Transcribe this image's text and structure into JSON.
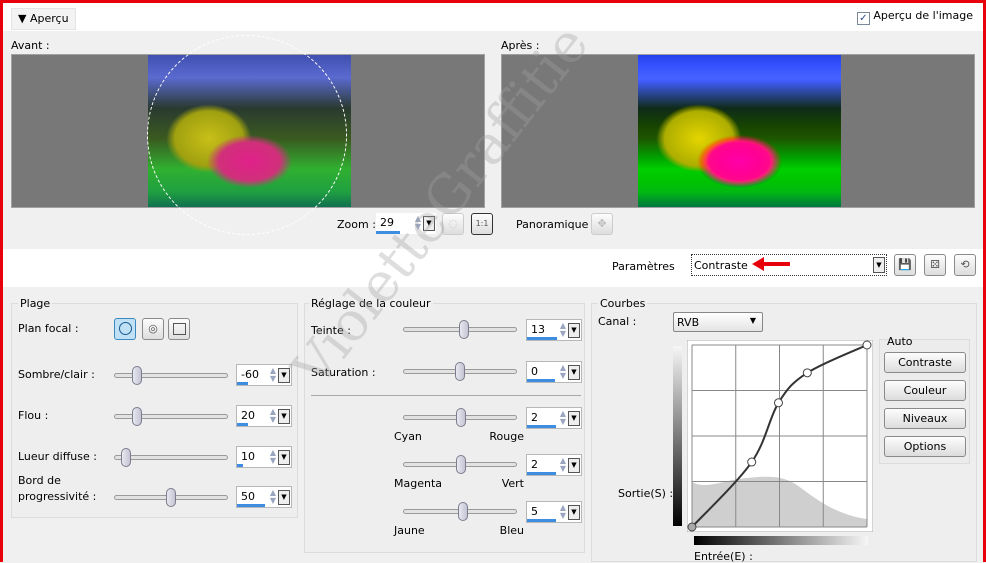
{
  "header": {
    "collapse_label": "Aperçu",
    "preview_checkbox_label": "Aperçu de l'image",
    "preview_checked": true
  },
  "preview": {
    "before_label": "Avant :",
    "after_label": "Après :",
    "zoom_label": "Zoom :",
    "zoom_value": "29",
    "zoom_fill": 0.29,
    "one_to_one": "1:1",
    "pan_label": "Panoramique :"
  },
  "params": {
    "label": "Paramètres",
    "preset": "Contraste"
  },
  "plage": {
    "title": "Plage",
    "focal_label": "Plan focal :",
    "focal_selected": "circle",
    "sliders": [
      {
        "label": "Sombre/clair :",
        "value": "-60",
        "min": -100,
        "max": 100
      },
      {
        "label": "Flou :",
        "value": "20",
        "min": 0,
        "max": 100
      },
      {
        "label": "Lueur diffuse :",
        "value": "10",
        "min": 0,
        "max": 100
      },
      {
        "label_line1": "Bord de",
        "label": "progressivité :",
        "value": "50",
        "min": 0,
        "max": 100
      }
    ]
  },
  "color": {
    "title": "Réglage de la couleur",
    "teinte": {
      "label": "Teinte :",
      "value": "13",
      "min": -180,
      "max": 180
    },
    "saturation": {
      "label": "Saturation :",
      "value": "0",
      "min": -100,
      "max": 100
    },
    "balance": [
      {
        "left": "Cyan",
        "right": "Rouge",
        "value": "2",
        "min": -100,
        "max": 100
      },
      {
        "left": "Magenta",
        "right": "Vert",
        "value": "2",
        "min": -100,
        "max": 100
      },
      {
        "left": "Jaune",
        "right": "Bleu",
        "value": "5",
        "min": -100,
        "max": 100
      }
    ]
  },
  "curves": {
    "title": "Courbes",
    "channel_label": "Canal :",
    "channel": "RVB",
    "output_label": "Sortie(S) :",
    "input_label": "Entrée(E) :",
    "points": [
      [
        0,
        0
      ],
      [
        87,
        91
      ],
      [
        126,
        174
      ],
      [
        168,
        216
      ],
      [
        255,
        255
      ]
    ],
    "auto_title": "Auto",
    "auto_buttons": [
      "Contraste",
      "Couleur",
      "Niveaux",
      "Options"
    ]
  },
  "annotation": {
    "watermark": "VioletteGraffitie",
    "arrow_color": "#e8000b"
  }
}
